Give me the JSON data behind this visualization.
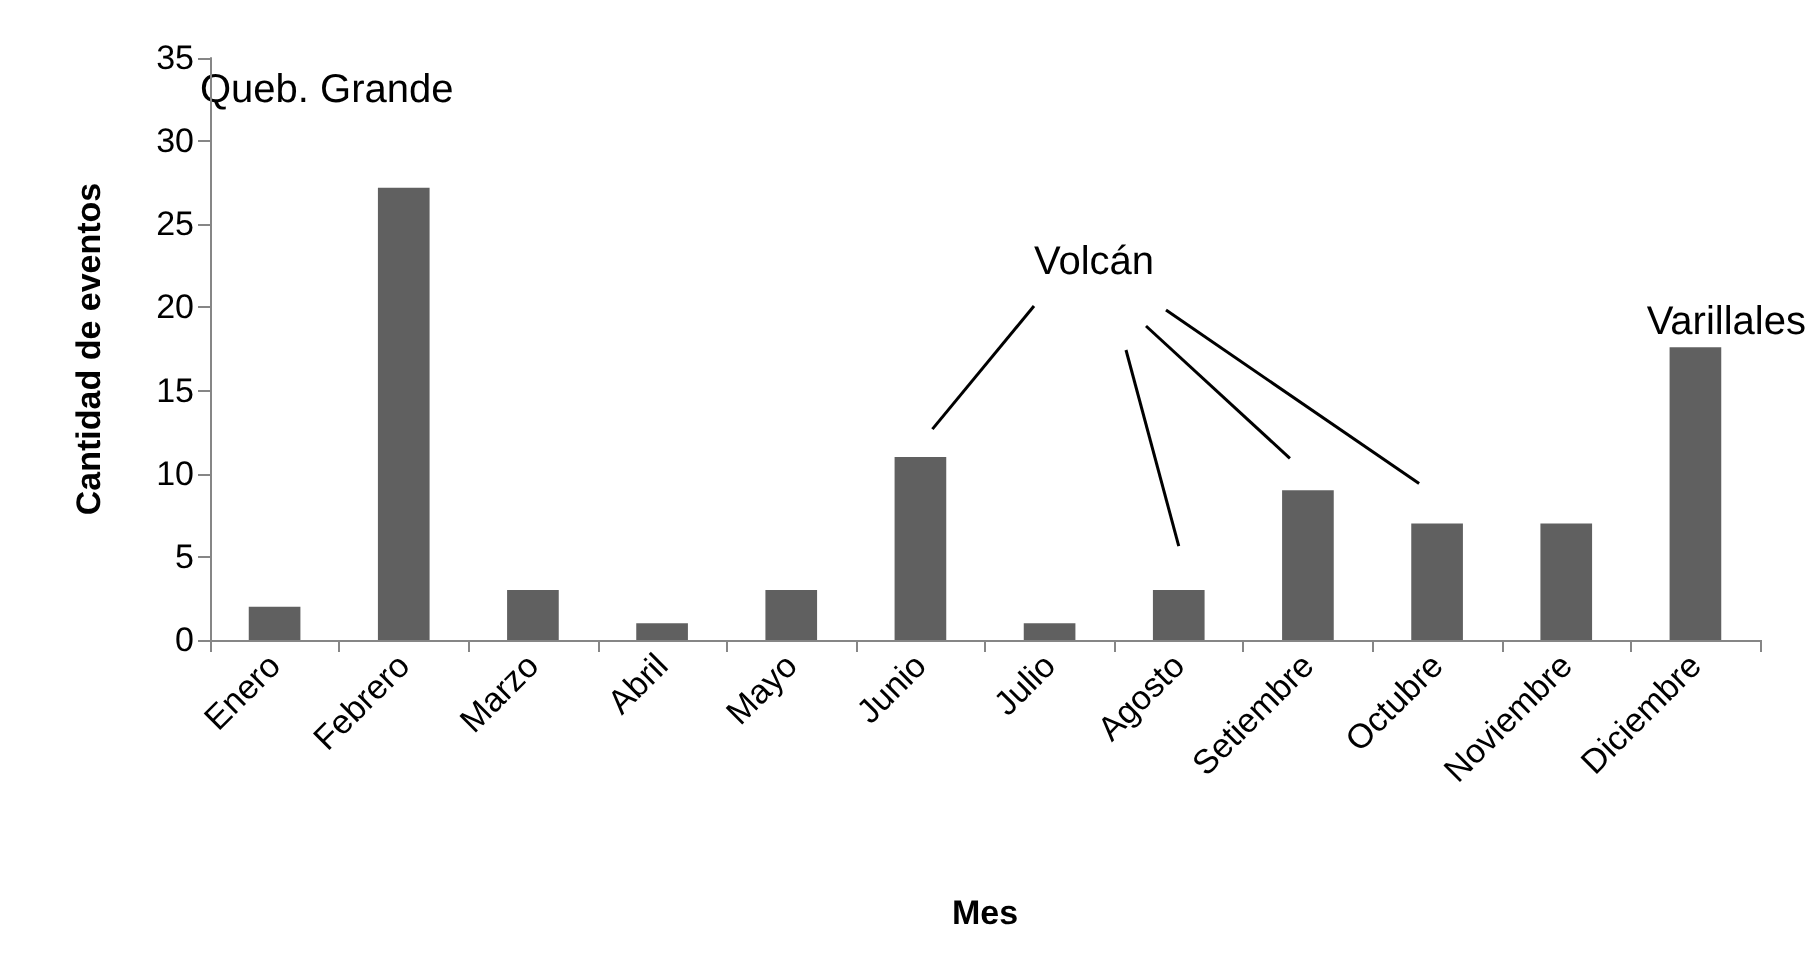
{
  "chart_data": {
    "type": "bar",
    "xlabel": "Mes",
    "ylabel": "Cantidad de eventos",
    "categories": [
      "Enero",
      "Febrero",
      "Marzo",
      "Abril",
      "Mayo",
      "Junio",
      "Julio",
      "Agosto",
      "Setiembre",
      "Octubre",
      "Noviembre",
      "Diciembre"
    ],
    "values": [
      2,
      27.2,
      3,
      1,
      3,
      11,
      1,
      3,
      9,
      7,
      7,
      17.6
    ],
    "color": "#606060",
    "ylim": [
      0,
      35
    ],
    "yticks": [
      0,
      5,
      10,
      15,
      20,
      25,
      30,
      35
    ],
    "grid": false,
    "annotations": [
      "Queb. Grande",
      "Volcán",
      "Varillales"
    ]
  }
}
